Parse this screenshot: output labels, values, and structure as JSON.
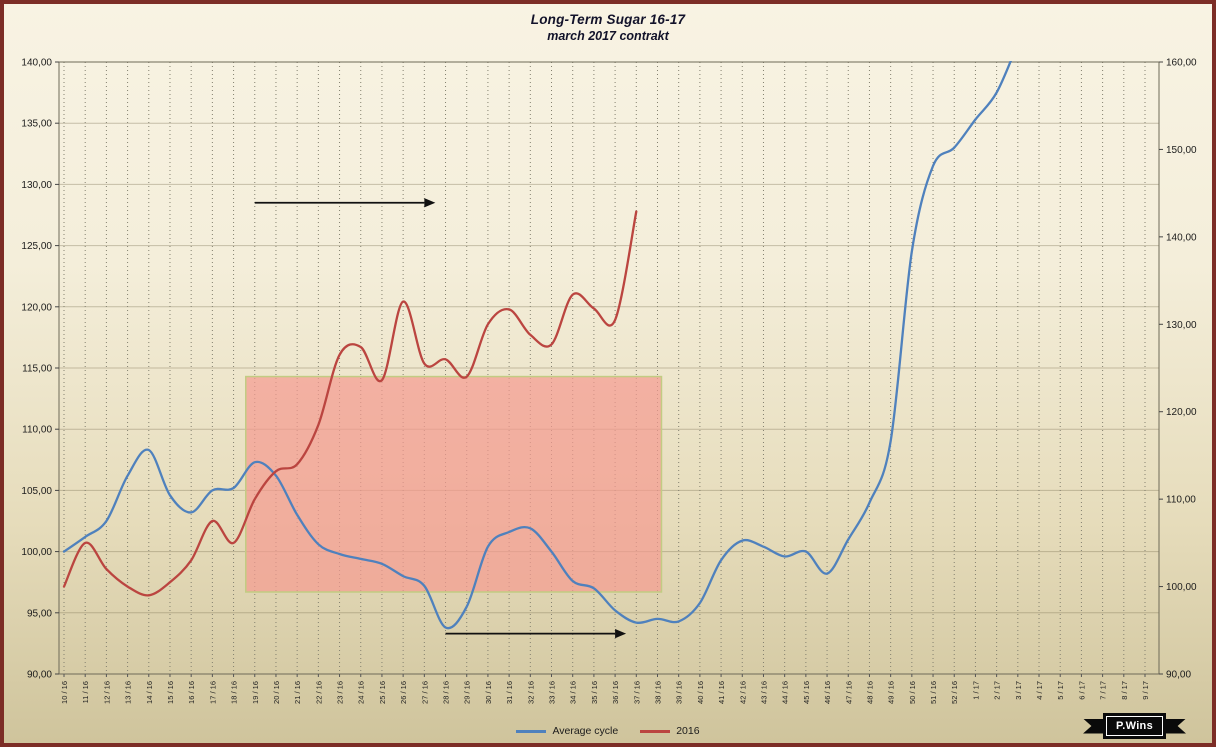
{
  "window": {
    "frame_color": "#7c2d26",
    "background_top": "#f8f3e3",
    "background_bottom": "#cfc49c"
  },
  "title": {
    "line1": "Long-Term Sugar 16-17",
    "line2": "march 2017 contrakt"
  },
  "legend": {
    "items": [
      {
        "label": "Average cycle",
        "color": "#4f81bd"
      },
      {
        "label": "2016",
        "color": "#bb4540"
      }
    ]
  },
  "watermark": {
    "label": "P.Wins"
  },
  "chart_data": {
    "type": "line",
    "title": "Long-Term Sugar 16-17",
    "subtitle": "march 2017 contrakt",
    "legend_position": "bottom",
    "grid": {
      "vertical": "dashed",
      "horizontal": "solid"
    },
    "categories": [
      "10 / 16",
      "11 / 16",
      "12 / 16",
      "13 / 16",
      "14 / 16",
      "15 / 16",
      "16 / 16",
      "17 / 16",
      "18 / 16",
      "19 / 16",
      "20 / 16",
      "21 / 16",
      "22 / 16",
      "23 / 16",
      "24 / 16",
      "25 / 16",
      "26 / 16",
      "27 / 16",
      "28 / 16",
      "29 / 16",
      "30 / 16",
      "31 / 16",
      "32 / 16",
      "33 / 16",
      "34 / 16",
      "35 / 16",
      "36 / 16",
      "37 / 16",
      "38 / 16",
      "39 / 16",
      "40 / 16",
      "41 / 16",
      "42 / 16",
      "43 / 16",
      "44 / 16",
      "45 / 16",
      "46 / 16",
      "47 / 16",
      "48 / 16",
      "49 / 16",
      "50 / 16",
      "51 / 16",
      "52 / 16",
      "1 / 17",
      "2 / 17",
      "3 / 17",
      "4 / 17",
      "5 / 17",
      "6 / 17",
      "7 / 17",
      "8 / 17",
      "9 / 17"
    ],
    "left_axis": {
      "min": 90,
      "max": 140,
      "step": 5,
      "ticks": [
        "140,00",
        "135,00",
        "130,00",
        "125,00",
        "120,00",
        "115,00",
        "110,00",
        "105,00",
        "100,00",
        "95,00",
        "90,00"
      ]
    },
    "right_axis": {
      "min": 90,
      "max": 160,
      "step": 10,
      "ticks": [
        "160,00",
        "150,00",
        "140,00",
        "130,00",
        "120,00",
        "110,00",
        "100,00",
        "90,00"
      ]
    },
    "series": [
      {
        "name": "Average cycle",
        "axis": "left",
        "color": "#4f81bd",
        "values": [
          100.0,
          101.2,
          102.5,
          106.2,
          108.3,
          104.6,
          103.2,
          105.0,
          105.2,
          107.3,
          106.2,
          103.0,
          100.6,
          99.8,
          99.4,
          99.0,
          98.0,
          97.2,
          93.8,
          95.5,
          100.4,
          101.6,
          101.9,
          100.0,
          97.6,
          97.0,
          95.2,
          94.2,
          94.5,
          94.3,
          95.8,
          99.3,
          100.9,
          100.4,
          99.6,
          100.0,
          98.2,
          101.0,
          104.0,
          109.0,
          124.5,
          131.5,
          133.0,
          135.3,
          137.5,
          141.5,
          null,
          null,
          null,
          null,
          null,
          null
        ]
      },
      {
        "name": "2016",
        "axis": "right",
        "color": "#bb4540",
        "values": [
          100.0,
          105.0,
          102.0,
          100.0,
          99.0,
          100.5,
          103.0,
          107.5,
          105.0,
          110.0,
          113.2,
          114.0,
          118.5,
          126.5,
          127.4,
          123.6,
          132.6,
          125.5,
          126.0,
          124.0,
          130.0,
          131.7,
          128.8,
          127.7,
          133.4,
          131.8,
          130.5,
          142.9,
          null,
          null,
          null,
          null,
          null,
          null,
          null,
          null,
          null,
          null,
          null,
          null,
          null,
          null,
          null,
          null,
          null,
          null,
          null,
          null,
          null,
          null,
          null,
          null
        ]
      }
    ],
    "highlight_box": {
      "from_category": "19 / 16",
      "to_category": "38 / 16",
      "top_left_axis": 114.3,
      "bottom_left_axis": 96.7,
      "fill": "#f59a90",
      "fill_opacity": 0.7,
      "border_color": "#c2cc83"
    },
    "arrows": [
      {
        "from_category": "19 / 16",
        "to_category": "27 / 16",
        "left_axis_y": 128.5,
        "color": "#111111"
      },
      {
        "from_category": "28 / 16",
        "to_category": "36 / 16",
        "left_axis_y": 93.3,
        "color": "#111111"
      }
    ]
  }
}
